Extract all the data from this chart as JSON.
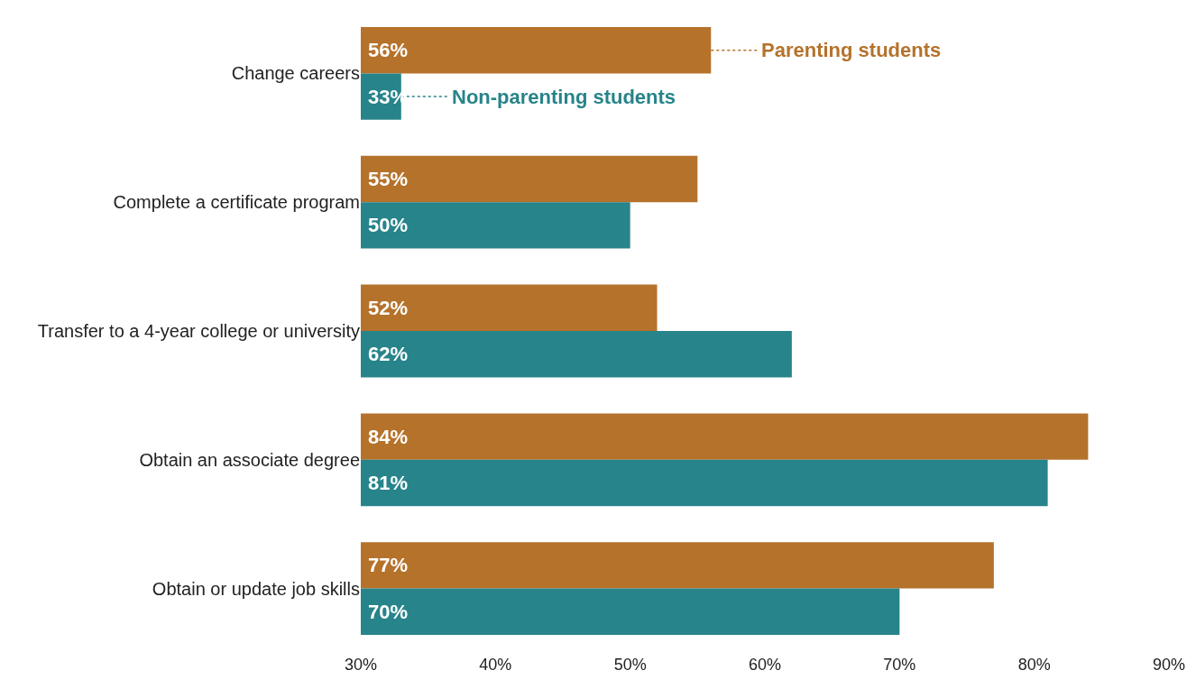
{
  "chart_data": {
    "type": "bar",
    "orientation": "horizontal",
    "categories": [
      "Change careers",
      "Complete a certificate program",
      "Transfer to a 4-year college or university",
      "Obtain an associate degree",
      "Obtain or update job skills"
    ],
    "series": [
      {
        "name": "Parenting students",
        "color": "#b5722b",
        "values": [
          56,
          55,
          52,
          84,
          77
        ],
        "value_labels": [
          "56%",
          "55%",
          "52%",
          "84%",
          "77%"
        ]
      },
      {
        "name": "Non-parenting students",
        "color": "#27848a",
        "values": [
          33,
          50,
          62,
          81,
          70
        ],
        "value_labels": [
          "33%",
          "50%",
          "62%",
          "81%",
          "70%"
        ]
      }
    ],
    "xlim": [
      30,
      90
    ],
    "xticks": [
      {
        "value": 30,
        "label": "30%"
      },
      {
        "value": 40,
        "label": "40%"
      },
      {
        "value": 50,
        "label": "50%"
      },
      {
        "value": 60,
        "label": "60%"
      },
      {
        "value": 70,
        "label": "70%"
      },
      {
        "value": 80,
        "label": "80%"
      },
      {
        "value": 90,
        "label": "90%"
      }
    ],
    "legend": "top"
  }
}
